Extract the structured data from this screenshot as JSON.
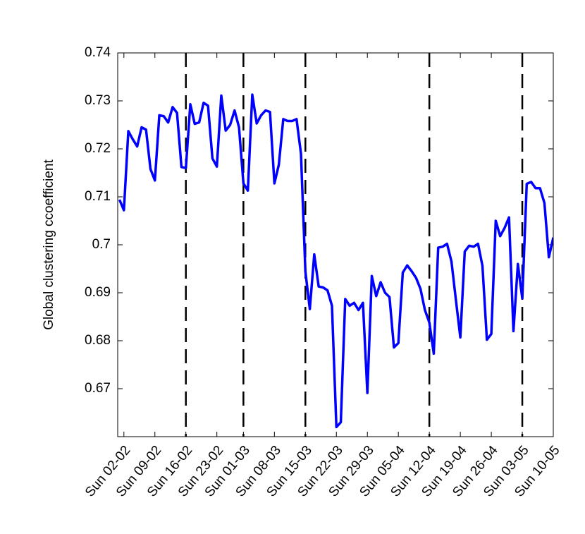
{
  "chart_data": {
    "type": "line",
    "y_label": "Global  clustering  ccoefficient",
    "x": [
      -1,
      0,
      1,
      2,
      3,
      4,
      5,
      6,
      7,
      8,
      9,
      10,
      11,
      12,
      13,
      14,
      15,
      16,
      17,
      18,
      19,
      20,
      21,
      22,
      23,
      24,
      25,
      26,
      27,
      28,
      29,
      30,
      31,
      32,
      33,
      34,
      35,
      36,
      37,
      38,
      39,
      40,
      41,
      42,
      43,
      44,
      45,
      46,
      47,
      48,
      49,
      50,
      51,
      52,
      53,
      54,
      55,
      56,
      57,
      58,
      59,
      60,
      61,
      62,
      63,
      64,
      65,
      66,
      67,
      68,
      69,
      70,
      71,
      72,
      73,
      74,
      75,
      76,
      77,
      78,
      79,
      80,
      81,
      82,
      83,
      84,
      85,
      86,
      87,
      88,
      89,
      90,
      91,
      92,
      93,
      94,
      95,
      96,
      97
    ],
    "values": [
      0.7094,
      0.7072,
      0.7237,
      0.722,
      0.7205,
      0.7245,
      0.724,
      0.7158,
      0.7134,
      0.727,
      0.7268,
      0.7255,
      0.7287,
      0.7275,
      0.7162,
      0.716,
      0.7293,
      0.7252,
      0.7255,
      0.7296,
      0.729,
      0.718,
      0.7163,
      0.7311,
      0.7238,
      0.725,
      0.728,
      0.7245,
      0.7128,
      0.7113,
      0.7313,
      0.7253,
      0.727,
      0.728,
      0.7277,
      0.7128,
      0.7167,
      0.7262,
      0.7258,
      0.7258,
      0.7262,
      0.719,
      0.6944,
      0.6866,
      0.698,
      0.6913,
      0.6911,
      0.6905,
      0.6873,
      0.662,
      0.663,
      0.6887,
      0.6873,
      0.6879,
      0.6864,
      0.6879,
      0.6691,
      0.6935,
      0.6893,
      0.6922,
      0.69,
      0.6891,
      0.6786,
      0.6795,
      0.6942,
      0.6957,
      0.6945,
      0.6931,
      0.6908,
      0.6864,
      0.6838,
      0.6773,
      0.6994,
      0.6996,
      0.7002,
      0.6965,
      0.6885,
      0.6807,
      0.6986,
      0.6998,
      0.6996,
      0.7002,
      0.6956,
      0.6802,
      0.6814,
      0.705,
      0.7018,
      0.7035,
      0.7057,
      0.682,
      0.696,
      0.6888,
      0.7127,
      0.7131,
      0.7118,
      0.7118,
      0.7087,
      0.6974,
      0.7015
    ],
    "color": "#0000ff",
    "vlines": [
      14,
      27,
      41,
      69,
      90
    ],
    "vline_color": "#000000",
    "xlim": [
      -1.4,
      97
    ],
    "xticks": [
      {
        "value": 0,
        "label": "Sun 02-02"
      },
      {
        "value": 7,
        "label": "Sun 09-02"
      },
      {
        "value": 14,
        "label": "Sun 16-02"
      },
      {
        "value": 21,
        "label": "Sun 23-02"
      },
      {
        "value": 27,
        "label": "Sun 01-03"
      },
      {
        "value": 34,
        "label": "Sun 08-03"
      },
      {
        "value": 41,
        "label": "Sun 15-03"
      },
      {
        "value": 48,
        "label": "Sun 22-03"
      },
      {
        "value": 55,
        "label": "Sun 29-03"
      },
      {
        "value": 62,
        "label": "Sun 05-04"
      },
      {
        "value": 69,
        "label": "Sun 12-04"
      },
      {
        "value": 76,
        "label": "Sun 19-04"
      },
      {
        "value": 83,
        "label": "Sun 26-04"
      },
      {
        "value": 90,
        "label": "Sun 03-05"
      },
      {
        "value": 97,
        "label": "Sun 10-05"
      }
    ],
    "ylim": [
      0.66,
      0.74
    ],
    "yticks": [
      0.67,
      0.68,
      0.69,
      0.7,
      0.71,
      0.72,
      0.73,
      0.74
    ]
  }
}
